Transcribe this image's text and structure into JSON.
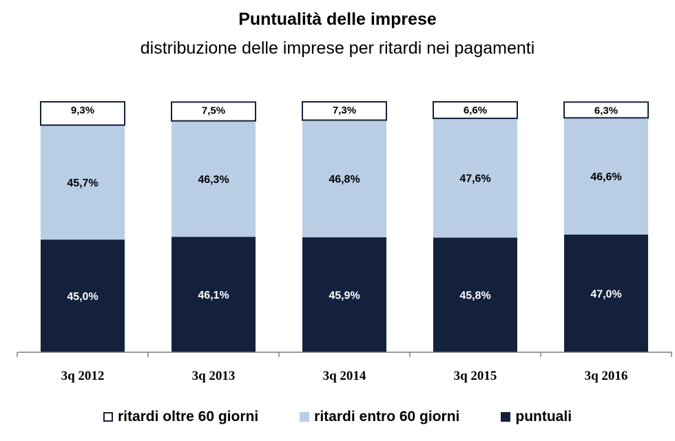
{
  "chart_data": {
    "type": "bar",
    "stacked": true,
    "percent": true,
    "title": "Puntualità delle imprese",
    "subtitle": "distribuzione delle imprese per ritardi nei pagamenti",
    "categories": [
      "3q 2012",
      "3q 2013",
      "3q 2014",
      "3q 2015",
      "3q 2016"
    ],
    "series": [
      {
        "name": "puntuali",
        "color": "#14213d",
        "values": [
          45.0,
          46.1,
          45.9,
          45.8,
          47.0
        ],
        "labels": [
          "45,0%",
          "46,1%",
          "45,9%",
          "45,8%",
          "47,0%"
        ]
      },
      {
        "name": "ritardi entro 60 giorni",
        "color": "#b9cde5",
        "values": [
          45.7,
          46.3,
          46.8,
          47.6,
          46.6
        ],
        "labels": [
          "45,7%",
          "46,3%",
          "46,8%",
          "47,6%",
          "46,6%"
        ]
      },
      {
        "name": "ritardi oltre 60 giorni",
        "color": "#ffffff",
        "values": [
          9.3,
          7.5,
          7.3,
          6.6,
          6.3
        ],
        "labels": [
          "9,3%",
          "7,5%",
          "7,3%",
          "6,6%",
          "6,3%"
        ]
      }
    ],
    "ylim": [
      0,
      100
    ],
    "grid": false,
    "legend_position": "bottom",
    "legend_order": [
      "ritardi oltre 60 giorni",
      "ritardi entro 60 giorni",
      "puntuali"
    ]
  }
}
